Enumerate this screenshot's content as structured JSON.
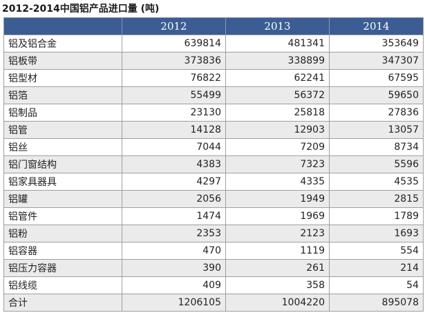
{
  "title": "2012-2014中国铝产品进口量 (吨)",
  "table": {
    "headers": [
      "",
      "2012",
      "2013",
      "2014"
    ],
    "rows": [
      {
        "name": "铝及铝合金",
        "values": [
          "639814",
          "481341",
          "353649"
        ]
      },
      {
        "name": "铝板带",
        "values": [
          "373836",
          "338899",
          "347307"
        ]
      },
      {
        "name": "铝型材",
        "values": [
          "76822",
          "62241",
          "67595"
        ]
      },
      {
        "name": "铝箔",
        "values": [
          "55499",
          "56372",
          "59650"
        ]
      },
      {
        "name": "铝制品",
        "values": [
          "23130",
          "25818",
          "27836"
        ]
      },
      {
        "name": "铝管",
        "values": [
          "14128",
          "12903",
          "13057"
        ]
      },
      {
        "name": "铝丝",
        "values": [
          "7044",
          "7209",
          "8734"
        ]
      },
      {
        "name": "铝门窗结构",
        "values": [
          "4383",
          "7323",
          "5596"
        ]
      },
      {
        "name": "铝家具器具",
        "values": [
          "4297",
          "4335",
          "4535"
        ]
      },
      {
        "name": "铝罐",
        "values": [
          "2056",
          "1949",
          "2815"
        ]
      },
      {
        "name": "铝管件",
        "values": [
          "1474",
          "1969",
          "1789"
        ]
      },
      {
        "name": "铝粉",
        "values": [
          "2353",
          "2123",
          "1693"
        ]
      },
      {
        "name": "铝容器",
        "values": [
          "470",
          "1119",
          "554"
        ]
      },
      {
        "name": "铝压力容器",
        "values": [
          "390",
          "261",
          "214"
        ]
      },
      {
        "name": "铝线缆",
        "values": [
          "409",
          "358",
          "54"
        ]
      },
      {
        "name": "合计",
        "values": [
          "1206105",
          "1004220",
          "895078"
        ]
      }
    ]
  },
  "colors": {
    "header_bg": "#3c5d94",
    "header_text": "#ffffff",
    "stripe_bg": "#ebebeb",
    "border": "#9e9e9e"
  }
}
